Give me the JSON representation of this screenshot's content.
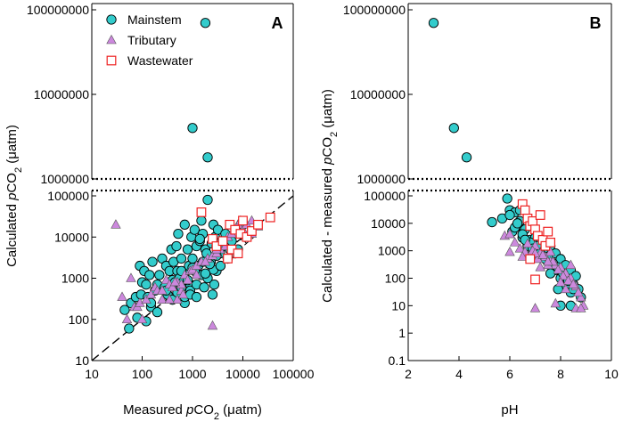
{
  "chart_data": [
    {
      "type": "scatter",
      "panel_label": "A",
      "xlabel": {
        "pre": "Measured ",
        "italic": "p",
        "main": "CO",
        "sub": "2",
        "post": " (μatm)"
      },
      "ylabel": {
        "pre": "Calculated ",
        "italic": "p",
        "main": "CO",
        "sub": "2",
        "post": " (μatm)"
      },
      "xscale": "log",
      "yscale": "log",
      "xlim": [
        10,
        100000
      ],
      "ylim_lower": [
        10,
        100000
      ],
      "ylim_upper": [
        1000000,
        100000000
      ],
      "x_ticks": [
        "10",
        "100",
        "1000",
        "10000",
        "100000"
      ],
      "y_ticks_lower": [
        "10",
        "100",
        "1000",
        "10000",
        "100000"
      ],
      "y_ticks_upper": [
        "1000000",
        "10000000",
        "100000000"
      ],
      "reference_line": {
        "label": "1:1",
        "style": "dashed",
        "equation": "y = x"
      },
      "legend": {
        "placement": "top-left",
        "entries": [
          "Mainstem",
          "Tributary",
          "Wastewater"
        ]
      },
      "series": [
        {
          "name": "Mainstem",
          "marker": "circle",
          "color": "#33cccc",
          "x": [
            45,
            55,
            60,
            75,
            80,
            90,
            95,
            100,
            110,
            120,
            120,
            130,
            140,
            150,
            160,
            180,
            200,
            220,
            250,
            280,
            300,
            320,
            350,
            380,
            400,
            420,
            450,
            480,
            500,
            520,
            550,
            600,
            650,
            700,
            750,
            800,
            850,
            900,
            950,
            1000,
            1100,
            1200,
            1300,
            1400,
            1500,
            1600,
            1800,
            2000,
            2200,
            2400,
            2600,
            2800,
            3000,
            3200,
            3500,
            3800,
            4000,
            4500,
            5000,
            5500,
            6000,
            7000,
            8000,
            9000,
            10000,
            1000,
            1800,
            2000,
            150,
            200,
            300,
            400,
            500,
            600,
            700,
            800,
            900,
            1000,
            1200,
            1500,
            1700,
            2000,
            2300,
            2600,
            3000,
            700,
            1100,
            1900,
            2700,
            3600,
            2500,
            3000,
            1600,
            1400,
            600,
            900,
            1200,
            1800,
            2200,
            5000
          ],
          "y": [
            170,
            60,
            250,
            350,
            110,
            2000,
            400,
            800,
            1500,
            700,
            90,
            350,
            1200,
            200,
            2500,
            500,
            700,
            1200,
            3000,
            600,
            2000,
            400,
            1500,
            5000,
            900,
            2500,
            800,
            6000,
            1500,
            12000,
            1000,
            3000,
            800,
            20000,
            1500,
            5000,
            2000,
            700,
            10000,
            3000,
            15000,
            6000,
            2000,
            8000,
            25000,
            12000,
            5000,
            80000,
            3000,
            7000,
            20000,
            10000,
            1500,
            15000,
            4000,
            8000,
            6000,
            12000,
            3000,
            5000,
            8000,
            4000,
            5000,
            15000,
            20000,
            4000000,
            70000000,
            1800000,
            250,
            150,
            500,
            300,
            450,
            600,
            250,
            900,
            500,
            1800,
            700,
            1200,
            600,
            1000,
            2500,
            1600,
            3500,
            350,
            1500,
            4000,
            700,
            2000,
            400,
            6000,
            2500,
            9000,
            1500,
            400,
            350,
            1300,
            2200,
            3000
          ]
        },
        {
          "name": "Tributary",
          "marker": "triangle",
          "color": "#cc88dd",
          "x": [
            30,
            40,
            50,
            60,
            70,
            80,
            90,
            100,
            120,
            150,
            180,
            200,
            250,
            300,
            350,
            400,
            500,
            600,
            700,
            800,
            900,
            1000,
            1200,
            1500,
            2000,
            2500,
            3000,
            3500,
            4000,
            5000,
            6000,
            7000,
            8000,
            9000,
            10000,
            12000,
            15000,
            20000,
            2500,
            500,
            600,
            1200,
            1800,
            3000,
            250,
            350,
            450,
            650,
            4500,
            15000
          ],
          "y": [
            20000,
            350,
            100,
            1000,
            200,
            200,
            250,
            100,
            300,
            400,
            600,
            500,
            300,
            900,
            700,
            600,
            800,
            500,
            1200,
            900,
            1500,
            1600,
            2000,
            2500,
            3000,
            3500,
            4000,
            5000,
            8000,
            10000,
            12000,
            15000,
            20000,
            25000,
            15000,
            20000,
            12000,
            18000,
            70,
            300,
            700,
            1200,
            2500,
            5000,
            500,
            300,
            800,
            400,
            6000,
            25000
          ]
        },
        {
          "name": "Wastewater",
          "marker": "square",
          "color": "#ee2222",
          "x": [
            1500,
            2500,
            3000,
            4000,
            5000,
            5500,
            6000,
            7000,
            8000,
            9000,
            10000,
            12000,
            15000,
            20000,
            35000
          ],
          "y": [
            40000,
            9000,
            6000,
            8000,
            3000,
            20000,
            5000,
            15000,
            4000,
            12000,
            25000,
            10000,
            14000,
            20000,
            30000
          ]
        }
      ]
    },
    {
      "type": "scatter",
      "panel_label": "B",
      "xlabel": "pH",
      "ylabel": {
        "pre": "Calculated - measured ",
        "italic": "p",
        "main": "CO",
        "sub": "2",
        "post": " (μatm)"
      },
      "xscale": "linear",
      "yscale": "log",
      "xlim": [
        2,
        10
      ],
      "ylim_lower": [
        0.1,
        100000
      ],
      "ylim_upper": [
        1000000,
        100000000
      ],
      "x_ticks": [
        "2",
        "4",
        "6",
        "8",
        "10"
      ],
      "y_ticks_lower": [
        "0.1",
        "1",
        "10",
        "100",
        "1000",
        "10000",
        "100000"
      ],
      "y_ticks_upper": [
        "1000000",
        "10000000",
        "100000000"
      ],
      "series": [
        {
          "name": "Mainstem",
          "marker": "circle",
          "color": "#33cccc",
          "x": [
            3.0,
            3.8,
            4.3,
            5.3,
            5.7,
            5.9,
            6.0,
            6.1,
            6.2,
            6.3,
            6.4,
            6.5,
            6.6,
            6.7,
            6.8,
            6.9,
            7.0,
            7.1,
            7.2,
            7.3,
            7.4,
            7.5,
            7.6,
            7.7,
            7.8,
            7.9,
            8.0,
            8.1,
            8.2,
            8.3,
            8.4,
            8.5,
            8.6,
            8.7,
            8.8,
            6.2,
            6.5,
            6.8,
            7.0,
            7.2,
            7.4,
            7.6,
            7.8,
            8.0,
            8.2,
            8.4,
            6.6,
            7.1,
            7.3,
            7.5,
            7.7,
            7.9,
            8.1,
            8.3,
            8.5,
            6.0,
            6.3,
            6.9,
            7.5,
            8.0,
            7.2,
            7.6,
            7.9,
            8.4,
            6.4
          ],
          "y": [
            70000000,
            4000000,
            1800000,
            11000,
            15000,
            80000,
            30000,
            5000,
            25000,
            8000,
            12000,
            3000,
            6000,
            1500,
            2500,
            800,
            3000,
            1200,
            2000,
            600,
            1000,
            400,
            1500,
            300,
            800,
            200,
            500,
            150,
            300,
            100,
            200,
            60,
            120,
            40,
            20,
            7000,
            4000,
            2000,
            1000,
            700,
            500,
            300,
            200,
            100,
            60,
            30,
            2500,
            1500,
            900,
            600,
            350,
            250,
            150,
            80,
            40,
            20000,
            10000,
            1200,
            600,
            10,
            800,
            150,
            40,
            10,
            30000
          ]
        },
        {
          "name": "Tributary",
          "marker": "triangle",
          "color": "#cc88dd",
          "x": [
            5.8,
            6.0,
            6.2,
            6.4,
            6.6,
            6.8,
            7.0,
            7.2,
            7.4,
            7.6,
            7.8,
            8.0,
            8.2,
            8.4,
            8.6,
            8.8,
            6.5,
            6.9,
            7.1,
            7.3,
            7.5,
            7.7,
            7.9,
            8.1,
            8.3,
            8.5,
            8.7,
            8.9,
            6.7,
            7.0,
            7.4,
            7.8,
            8.2,
            8.6,
            7.2,
            7.6,
            8.0,
            8.4,
            8.8,
            7.0,
            7.5,
            6.0
          ],
          "y": [
            3500,
            4000,
            2000,
            1200,
            900,
            700,
            1500,
            800,
            600,
            400,
            300,
            250,
            150,
            100,
            50,
            20,
            600,
            1000,
            500,
            700,
            300,
            400,
            200,
            120,
            80,
            60,
            30,
            10,
            1800,
            8,
            1500,
            12,
            40,
            8,
            250,
            900,
            70,
            300,
            8,
            800,
            400,
            900
          ]
        },
        {
          "name": "Wastewater",
          "marker": "square",
          "color": "#ee2222",
          "x": [
            6.5,
            6.6,
            6.7,
            6.8,
            6.9,
            7.0,
            7.1,
            7.2,
            7.3,
            7.4,
            7.5,
            7.6,
            7.0,
            6.8
          ],
          "y": [
            50000,
            30000,
            15000,
            8000,
            12000,
            6000,
            3500,
            20000,
            2500,
            1500,
            5000,
            2000,
            90,
            500
          ]
        }
      ]
    }
  ]
}
